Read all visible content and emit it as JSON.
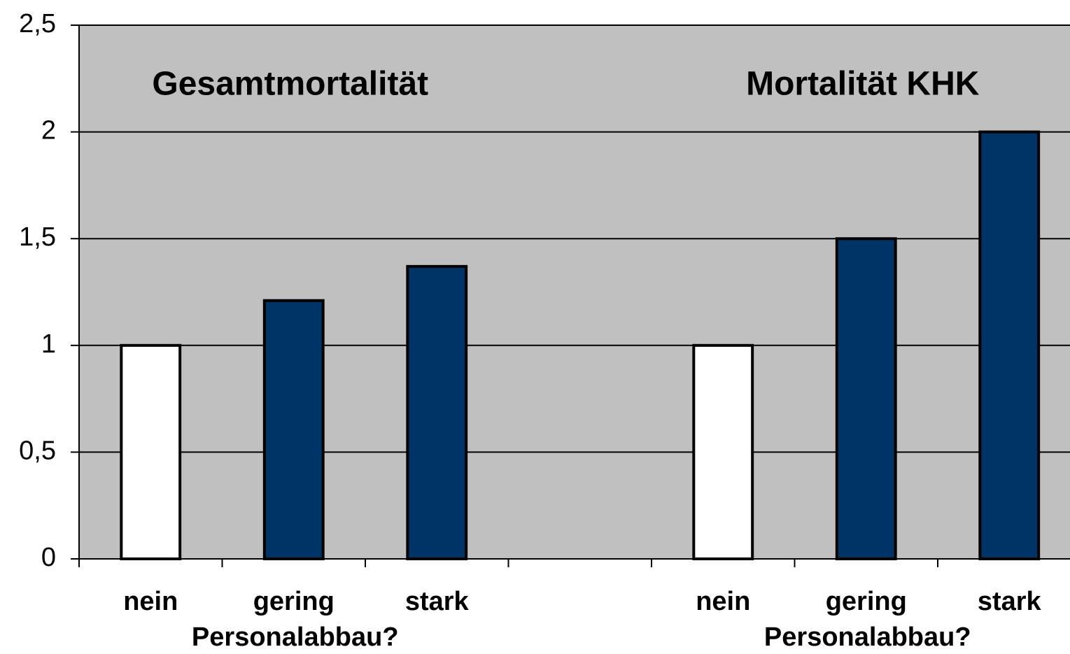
{
  "chart_data": {
    "type": "bar",
    "group_titles": [
      "Gesamtmortalität",
      "Mortalität KHK"
    ],
    "group_xlabels": [
      "Personalabbau?",
      "Personalabbau?"
    ],
    "categories": [
      "nein",
      "gering",
      "stark",
      null,
      "nein",
      "gering",
      "stark"
    ],
    "values": [
      1,
      1.21,
      1.37,
      null,
      1,
      1.5,
      2
    ],
    "colors": [
      "#ffffff",
      "#003366",
      "#003366",
      null,
      "#ffffff",
      "#003366",
      "#003366"
    ],
    "ylim": [
      0,
      2.5
    ],
    "yticks": [
      0,
      {
        "value": 0.5,
        "label": "0,5"
      },
      1,
      {
        "value": 1.5,
        "label": "1,5"
      },
      2,
      {
        "value": 2.5,
        "label": "2,5"
      }
    ],
    "grid": true,
    "background": "#c0c0c0"
  }
}
